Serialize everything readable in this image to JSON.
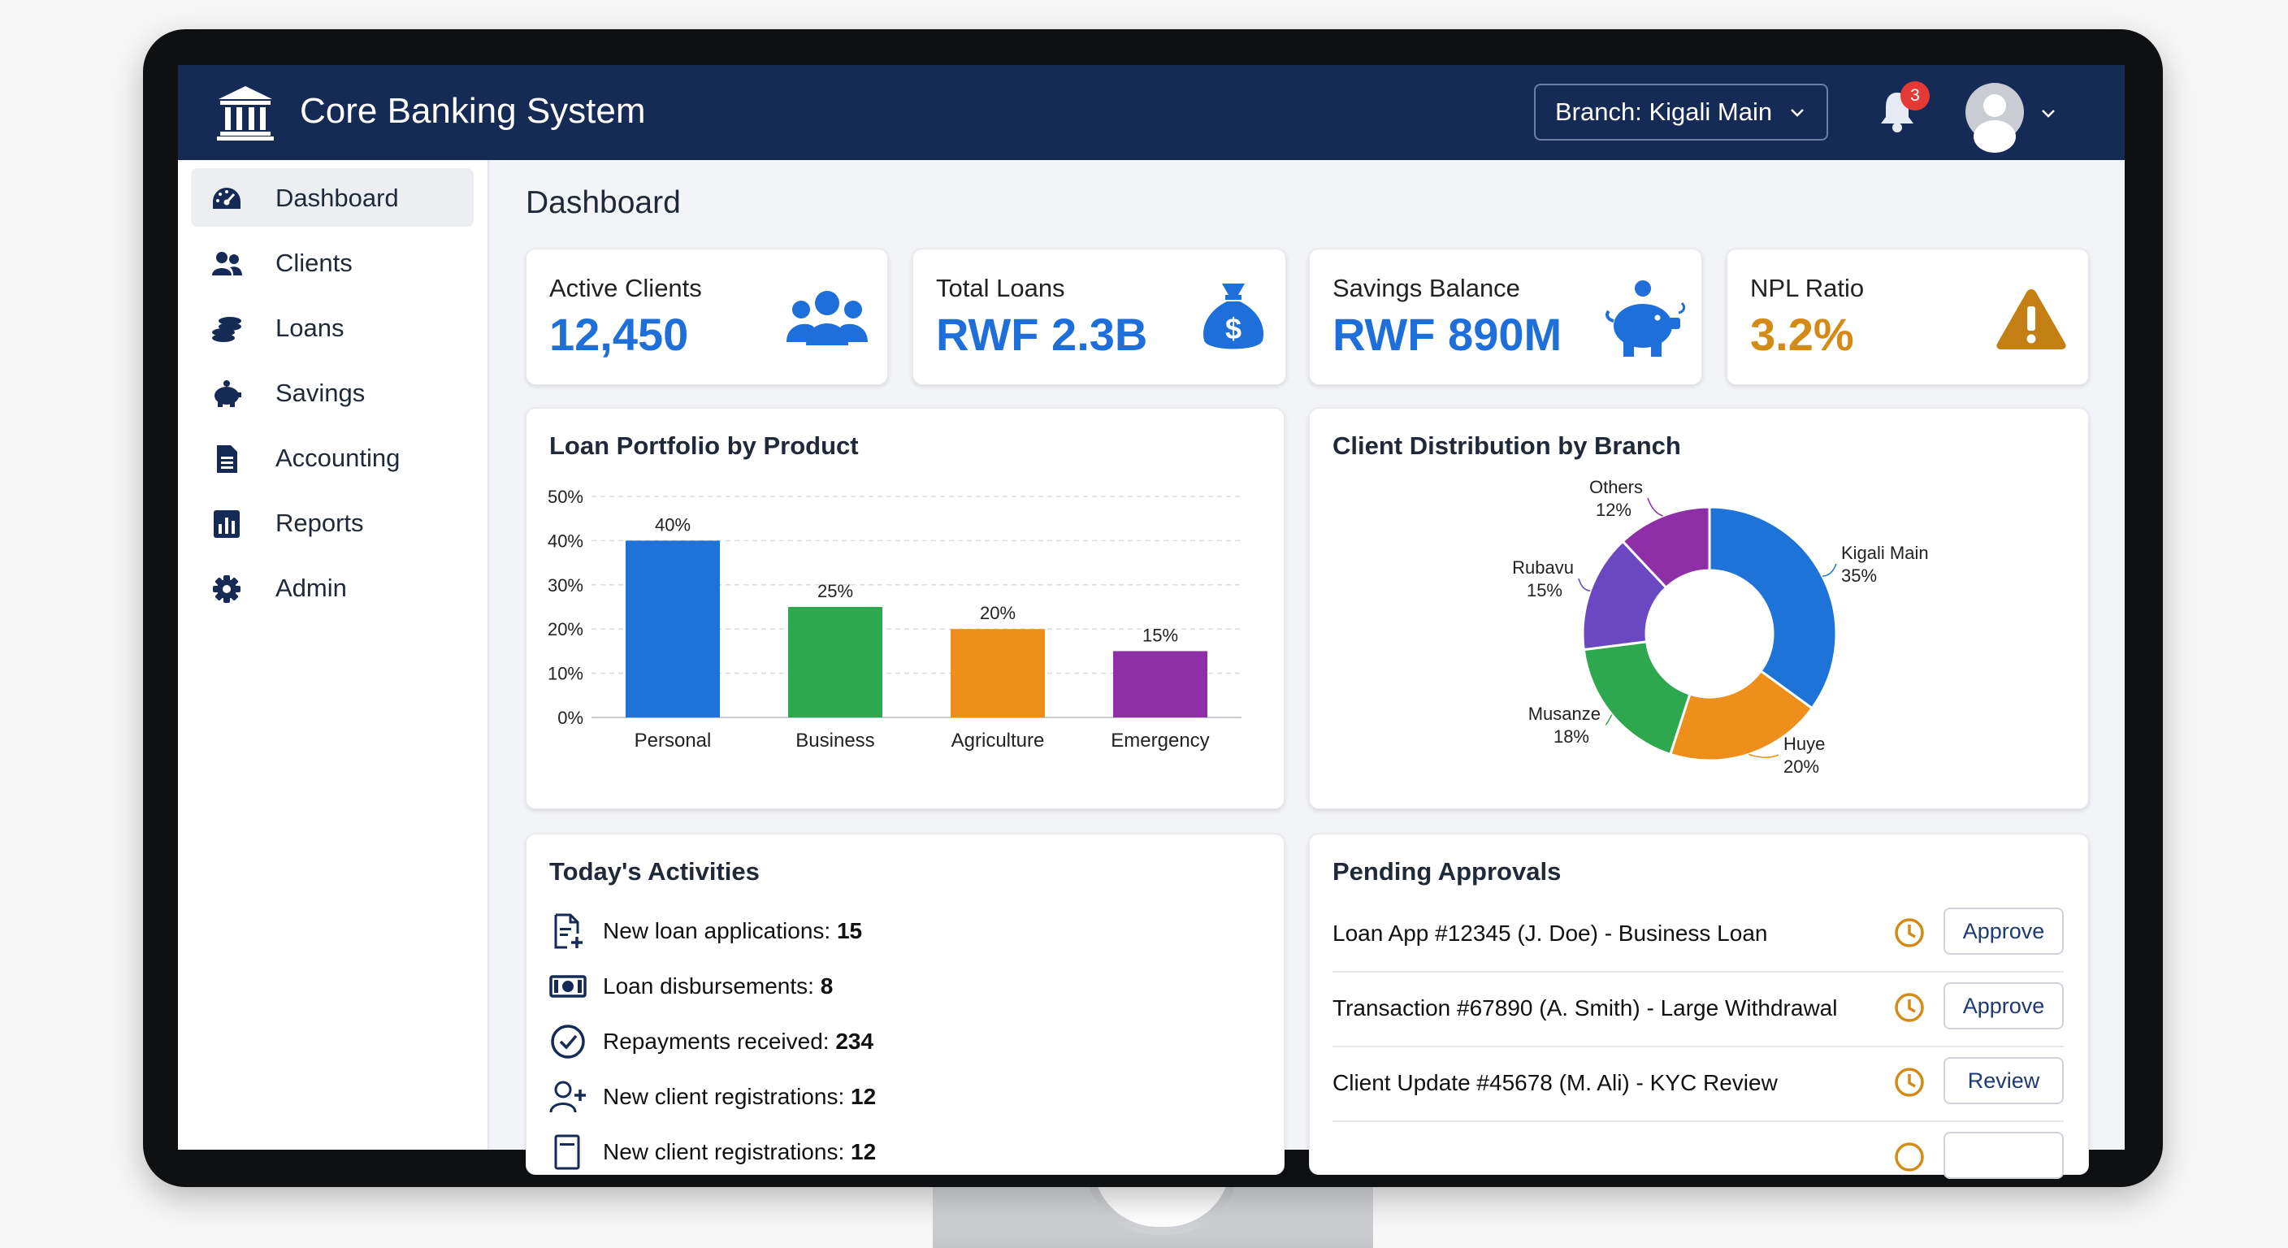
{
  "app": {
    "title": "Core Banking System"
  },
  "header": {
    "branch_label": "Branch: Kigali Main",
    "notification_count": "3"
  },
  "sidebar": {
    "items": [
      {
        "label": "Dashboard",
        "icon": "dashboard-gauge-icon",
        "active": true
      },
      {
        "label": "Clients",
        "icon": "users-icon"
      },
      {
        "label": "Loans",
        "icon": "coins-icon"
      },
      {
        "label": "Savings",
        "icon": "piggy-bank-icon"
      },
      {
        "label": "Accounting",
        "icon": "document-icon"
      },
      {
        "label": "Reports",
        "icon": "bar-chart-icon"
      },
      {
        "label": "Admin",
        "icon": "gear-icon"
      }
    ]
  },
  "main": {
    "title": "Dashboard"
  },
  "kpis": [
    {
      "label": "Active Clients",
      "value": "12,450",
      "color": "#1e6fd9",
      "icon": "users-icon"
    },
    {
      "label": "Total Loans",
      "value": "RWF 2.3B",
      "color": "#1e6fd9",
      "icon": "money-bag-icon"
    },
    {
      "label": "Savings Balance",
      "value": "RWF 890M",
      "color": "#1e6fd9",
      "icon": "piggy-bank-icon"
    },
    {
      "label": "NPL Ratio",
      "value": "3.2%",
      "color": "#d38a16",
      "icon": "warning-icon"
    }
  ],
  "loan_chart": {
    "title": "Loan Portfolio by Product"
  },
  "client_chart": {
    "title": "Client Distribution by Branch"
  },
  "chart_data": [
    {
      "type": "bar",
      "title": "Loan Portfolio by Product",
      "categories": [
        "Personal",
        "Business",
        "Agriculture",
        "Emergency"
      ],
      "values": [
        40,
        25,
        20,
        15
      ],
      "value_labels": [
        "40%",
        "25%",
        "20%",
        "15%"
      ],
      "colors": [
        "#1e73d8",
        "#2ea84e",
        "#ee8f1b",
        "#8e2fa8"
      ],
      "yticks": [
        "0%",
        "10%",
        "20%",
        "30%",
        "40%",
        "50%"
      ],
      "ylim": [
        0,
        50
      ],
      "grid": true
    },
    {
      "type": "pie",
      "title": "Client Distribution by Branch",
      "donut": true,
      "slices": [
        {
          "label": "Kigali Main",
          "value": 35,
          "pct": "35%",
          "color": "#1e73d8"
        },
        {
          "label": "Huye",
          "value": 20,
          "pct": "20%",
          "color": "#ee8f1b"
        },
        {
          "label": "Musanze",
          "value": 18,
          "pct": "18%",
          "color": "#2ea84e"
        },
        {
          "label": "Rubavu",
          "value": 15,
          "pct": "15%",
          "color": "#6a48c2"
        },
        {
          "label": "Others",
          "value": 12,
          "pct": "12%",
          "color": "#8e2fa8"
        }
      ]
    }
  ],
  "activities": {
    "title": "Today's Activities",
    "items": [
      {
        "label": "New loan applications: ",
        "value": "15",
        "icon": "document-plus-icon"
      },
      {
        "label": "Loan disbursements: ",
        "value": "8",
        "icon": "cash-icon"
      },
      {
        "label": "Repayments received: ",
        "value": "234",
        "icon": "check-circle-icon"
      },
      {
        "label": "New client registrations: ",
        "value": "12",
        "icon": "user-plus-icon"
      },
      {
        "label": "New client registrations: ",
        "value": "12",
        "icon": "document-icon"
      }
    ]
  },
  "approvals": {
    "title": "Pending Approvals",
    "items": [
      {
        "text": "Loan App #12345 (J. Doe) - Business Loan",
        "action": "Approve"
      },
      {
        "text": "Transaction #67890 (A. Smith) - Large Withdrawal",
        "action": "Approve"
      },
      {
        "text": "Client Update #45678 (M. Ali) - KYC Review",
        "action": "Review"
      }
    ]
  }
}
